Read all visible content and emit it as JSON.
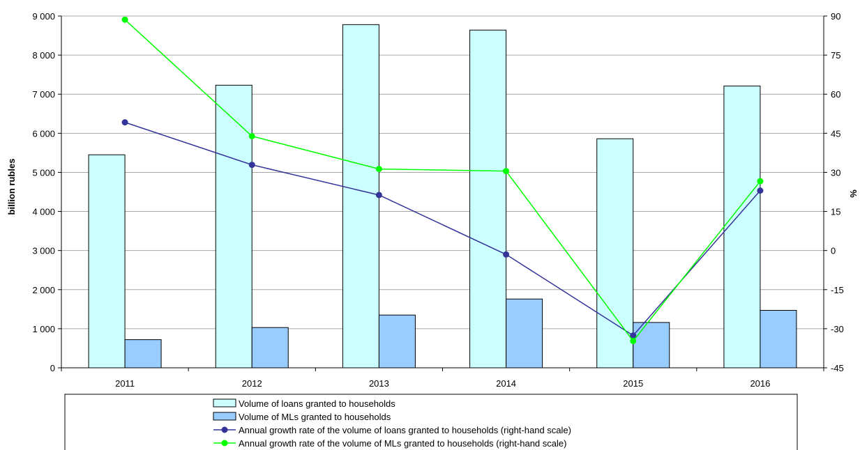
{
  "chart_data": {
    "type": "bar",
    "categories": [
      "2011",
      "2012",
      "2013",
      "2014",
      "2015",
      "2016"
    ],
    "ylabel": "billion rubles",
    "ylabel_right": "%",
    "ylim": [
      0,
      9000
    ],
    "ylim_right": [
      -45,
      90
    ],
    "yticks": [
      0,
      1000,
      2000,
      3000,
      4000,
      5000,
      6000,
      7000,
      8000,
      9000
    ],
    "yticks_right": [
      -45,
      -30,
      -15,
      0,
      15,
      30,
      45,
      60,
      75,
      90
    ],
    "ytick_labels": [
      "0",
      "1 000",
      "2 000",
      "3 000",
      "4 000",
      "5 000",
      "6 000",
      "7 000",
      "8 000",
      "9 000"
    ],
    "ytick_labels_right": [
      "-45",
      "-30",
      "-15",
      "0",
      "15",
      "30",
      "45",
      "60",
      "75",
      "90"
    ],
    "grid": true,
    "legend_position": "bottom",
    "series": [
      {
        "name": "Volume of loans granted to households",
        "kind": "bar",
        "axis": "left",
        "color": "#ccffff",
        "values": [
          5450,
          7230,
          8780,
          8640,
          5860,
          7210
        ]
      },
      {
        "name": "Volume of MLs granted to households",
        "kind": "bar",
        "axis": "left",
        "color": "#99ccff",
        "values": [
          720,
          1030,
          1350,
          1760,
          1160,
          1470
        ]
      },
      {
        "name": "Annual growth rate of the volume of loans granted to households (right-hand scale)",
        "kind": "line",
        "axis": "right",
        "color": "#333399",
        "values": [
          49.2,
          32.9,
          21.3,
          -1.5,
          -32.6,
          23.0
        ]
      },
      {
        "name": "Annual growth rate of the volume of MLs granted to households (right-hand scale)",
        "kind": "line",
        "axis": "right",
        "color": "#00ff00",
        "values": [
          88.6,
          43.9,
          31.3,
          30.5,
          -34.7,
          26.6
        ]
      }
    ]
  }
}
